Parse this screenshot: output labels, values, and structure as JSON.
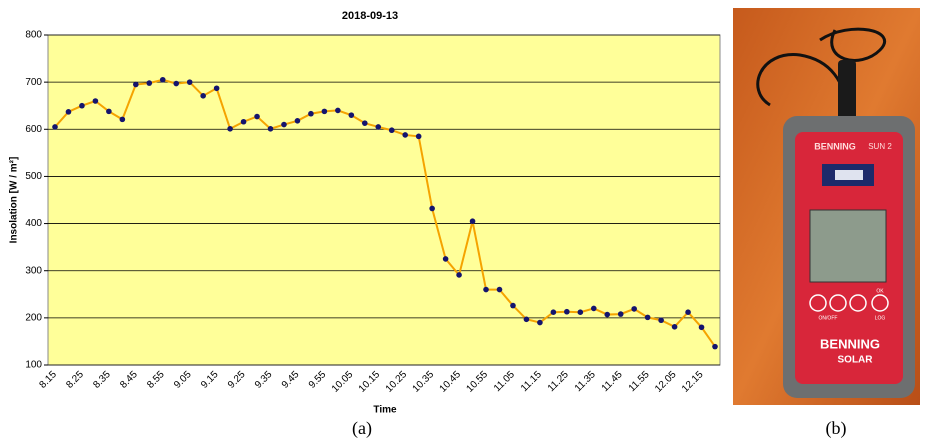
{
  "chart_data": {
    "type": "line",
    "title": "2018-09-13",
    "x_label": "Time",
    "y_label": "Insolation [W / m²]",
    "categories": [
      "8.15",
      null,
      "8.25",
      null,
      "8.35",
      null,
      "8.45",
      null,
      "8.55",
      null,
      "9.05",
      null,
      "9.15",
      null,
      "9.25",
      null,
      "9.35",
      null,
      "9.45",
      null,
      "9.55",
      null,
      "10.05",
      null,
      "10.15",
      null,
      "10.25",
      null,
      "10.35",
      null,
      "10.45",
      null,
      "10.55",
      null,
      "11.05",
      null,
      "11.15",
      null,
      "11.25",
      null,
      "11.35",
      null,
      "11.45",
      null,
      "11.55",
      null,
      "12.05",
      null,
      "12.15",
      null
    ],
    "values": [
      605,
      637,
      650,
      660,
      638,
      621,
      695,
      698,
      705,
      697,
      700,
      671,
      687,
      601,
      616,
      627,
      601,
      610,
      618,
      633,
      638,
      640,
      630,
      613,
      605,
      598,
      588,
      585,
      432,
      325,
      291,
      405,
      260,
      260,
      226,
      197,
      190,
      212,
      213,
      212,
      220,
      207,
      208,
      219,
      201,
      195,
      181,
      212,
      180,
      139
    ],
    "color": "#f5a300",
    "marker_color": "#14146e",
    "plot_background": "#ffff99",
    "ylim": [
      100,
      800
    ],
    "yticks": [
      100,
      200,
      300,
      400,
      500,
      600,
      700,
      800
    ],
    "grid": true
  },
  "photo": {
    "brand": "BENNING",
    "model": "SUN 2",
    "buttons": [
      "ON/OFF",
      "OK",
      "LOG"
    ],
    "logo": [
      "BENNING",
      "SOLAR"
    ]
  },
  "captions": [
    "(a)",
    "(b)"
  ]
}
